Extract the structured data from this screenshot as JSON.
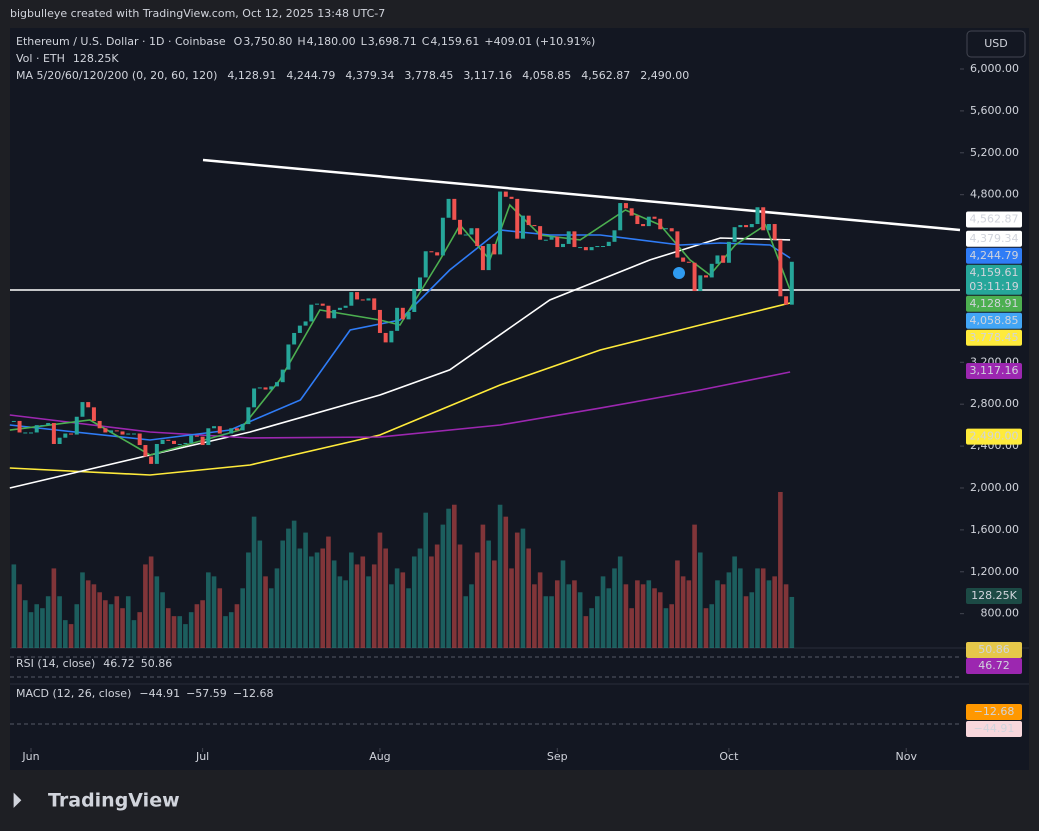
{
  "chart_data": {
    "type": "candlestick",
    "credit": "bigbulleye created with TradingView.com, Oct 12, 2025 13:48 UTC-7",
    "symbol": "Ethereum / U.S. Dollar · 1D · Coinbase",
    "ohlc": [
      {
        "key": "O",
        "label": "3,750.80"
      },
      {
        "key": "H",
        "label": "4,180.00"
      },
      {
        "key": "L",
        "label": "3,698.71"
      },
      {
        "key": "C",
        "label": "4,159.61"
      }
    ],
    "change": "+409.01 (+10.91%)",
    "close": {
      "value": 4159.61,
      "label": "4,159.61"
    },
    "countdown": "03:11:19",
    "currency": "USD",
    "vol_legend": {
      "label": "Vol · ETH",
      "value": 128250,
      "value_label": "128.25K"
    },
    "ma_legend": "MA 5/20/60/120/200 (0, 20, 60, 120)",
    "ma_values": [
      {
        "value": 4128.91,
        "label": "4,128.91",
        "color": "#4caf50",
        "text_color": "#000000"
      },
      {
        "value": 4244.79,
        "label": "4,244.79",
        "color": "#2f7cf6",
        "text_color": "#ffffff"
      },
      {
        "value": 4379.34,
        "label": "4,379.34",
        "color": "#ffffff",
        "text_color": "#000000"
      },
      {
        "value": 3778.45,
        "label": "3,778.45",
        "color": "#ffeb3b",
        "text_color": "#000000"
      },
      {
        "value": 3117.16,
        "label": "3,117.16",
        "color": "#9c27b0",
        "text_color": "#ffffff"
      },
      {
        "value": 4058.85,
        "label": "4,058.85",
        "color": "#42a5f5",
        "text_color": "#ffffff"
      },
      {
        "value": 4562.87,
        "label": "4,562.87",
        "color": "#ffffff",
        "text_color": "#000000"
      },
      {
        "value": 2490.0,
        "label": "2,490.00",
        "color": "#ffeb3b",
        "text_color": "#000000"
      }
    ],
    "ma_lines": [
      {
        "color": "#ffeb3b",
        "x": [
          -0.7,
          23.8,
          41.3,
          64,
          85,
          102.5,
          120,
          135.7
        ],
        "values": [
          2191,
          2124,
          2219,
          2506,
          2983,
          3317,
          3556,
          3766
        ]
      },
      {
        "color": "#ffffff",
        "x": [
          -0.7,
          23.8,
          41.3,
          64,
          76.2,
          93.7,
          111.2,
          123.5,
          135.7
        ],
        "values": [
          2000,
          2315,
          2534,
          2888,
          3127,
          3795,
          4177,
          4387,
          4368
        ]
      },
      {
        "color": "#9c27b0",
        "x": [
          -0.7,
          23.8,
          41.3,
          64,
          85,
          102.5,
          120,
          135.7
        ],
        "values": [
          2697,
          2534,
          2477,
          2487,
          2601,
          2763,
          2935,
          3107
        ]
      },
      {
        "color": "#2f7cf6",
        "x": [
          -0.7,
          23.8,
          37.8,
          50.1,
          58.8,
          67.5,
          76.2,
          85,
          93.7,
          102.5,
          116.5,
          123.5,
          132.2,
          135.7
        ],
        "values": [
          2601,
          2458,
          2554,
          2840,
          3508,
          3604,
          4081,
          4463,
          4415,
          4415,
          4320,
          4339,
          4320,
          4196
        ]
      },
      {
        "color": "#4caf50",
        "x": [
          -0.7,
          13.3,
          23.8,
          39.5,
          46.5,
          53.5,
          64,
          67.5,
          74.5,
          78,
          83.2,
          86.7,
          92,
          99,
          106.9,
          113,
          118.2,
          121.7,
          126.1,
          131.4,
          135.7
        ],
        "values": [
          2553,
          2649,
          2315,
          2553,
          3031,
          3699,
          3604,
          3556,
          4177,
          4511,
          4177,
          4702,
          4415,
          4368,
          4654,
          4511,
          4177,
          4033,
          4320,
          4511,
          3890
        ]
      }
    ],
    "candles": {
      "close": [
        2640,
        2530,
        2530,
        2530,
        2600,
        2600,
        2620,
        2420,
        2480,
        2520,
        2510,
        2680,
        2820,
        2770,
        2640,
        2570,
        2530,
        2550,
        2540,
        2510,
        2520,
        2520,
        2410,
        2300,
        2230,
        2420,
        2460,
        2450,
        2420,
        2420,
        2430,
        2500,
        2490,
        2410,
        2570,
        2590,
        2520,
        2520,
        2570,
        2550,
        2610,
        2770,
        2950,
        2960,
        2940,
        2970,
        3010,
        3130,
        3370,
        3480,
        3550,
        3590,
        3750,
        3760,
        3740,
        3620,
        3700,
        3720,
        3740,
        3870,
        3800,
        3790,
        3810,
        3700,
        3480,
        3390,
        3500,
        3720,
        3610,
        3680,
        3900,
        4010,
        4260,
        4250,
        4220,
        4580,
        4760,
        4560,
        4420,
        4420,
        4480,
        4310,
        4080,
        4330,
        4230,
        4830,
        4780,
        4760,
        4380,
        4600,
        4510,
        4500,
        4370,
        4370,
        4400,
        4300,
        4330,
        4450,
        4300,
        4300,
        4270,
        4300,
        4310,
        4310,
        4350,
        4460,
        4720,
        4670,
        4600,
        4520,
        4500,
        4590,
        4570,
        4470,
        4480,
        4450,
        4200,
        4160,
        4150,
        3880,
        4030,
        4010,
        4140,
        4220,
        4150,
        4350,
        4490,
        4510,
        4490,
        4520,
        4680,
        4460,
        4520,
        4370,
        3830,
        3750,
        4159.61
      ],
      "up_color": "#26a69a",
      "down_color": "#ef5350"
    },
    "volume": {
      "values": [
        210000,
        160000,
        120000,
        90000,
        110000,
        100000,
        130000,
        200000,
        130000,
        70000,
        60000,
        110000,
        190000,
        170000,
        160000,
        140000,
        120000,
        110000,
        130000,
        100000,
        130000,
        70000,
        90000,
        210000,
        230000,
        180000,
        140000,
        100000,
        80000,
        80000,
        60000,
        90000,
        110000,
        120000,
        190000,
        180000,
        150000,
        80000,
        90000,
        110000,
        150000,
        240000,
        330000,
        270000,
        180000,
        150000,
        200000,
        270000,
        300000,
        320000,
        250000,
        290000,
        230000,
        240000,
        250000,
        280000,
        220000,
        180000,
        170000,
        240000,
        210000,
        230000,
        180000,
        210000,
        290000,
        250000,
        160000,
        200000,
        190000,
        150000,
        230000,
        250000,
        340000,
        230000,
        260000,
        310000,
        350000,
        360000,
        260000,
        130000,
        160000,
        240000,
        310000,
        270000,
        220000,
        360000,
        330000,
        200000,
        290000,
        300000,
        250000,
        160000,
        190000,
        130000,
        130000,
        170000,
        220000,
        160000,
        170000,
        140000,
        80000,
        100000,
        130000,
        180000,
        150000,
        200000,
        230000,
        160000,
        100000,
        170000,
        160000,
        170000,
        150000,
        140000,
        100000,
        110000,
        220000,
        180000,
        170000,
        310000,
        240000,
        100000,
        110000,
        170000,
        160000,
        190000,
        230000,
        200000,
        130000,
        140000,
        200000,
        200000,
        170000,
        180000,
        392000,
        160000,
        128250
      ],
      "ylim": [
        0,
        1000000
      ],
      "up_color": "rgba(38,166,154,0.5)",
      "down_color": "rgba(239,83,80,0.5)"
    },
    "xlim": [
      -0.67,
      165.4
    ],
    "xticks": [
      {
        "value": 3,
        "label": "Jun"
      },
      {
        "value": 33,
        "label": "Jul"
      },
      {
        "value": 64,
        "label": "Aug"
      },
      {
        "value": 95,
        "label": "Sep"
      },
      {
        "value": 125,
        "label": "Oct"
      },
      {
        "value": 156,
        "label": "Nov"
      }
    ],
    "ylim": [
      -692.4,
      6372.3
    ],
    "yticks": [
      {
        "value": 6000,
        "label": "6,000.00"
      },
      {
        "value": 5600,
        "label": "5,600.00"
      },
      {
        "value": 5200,
        "label": "5,200.00"
      },
      {
        "value": 4800,
        "label": "4,800.00"
      },
      {
        "value": 3200,
        "label": "3,200.00"
      },
      {
        "value": 2800,
        "label": "2,800.00"
      },
      {
        "value": 2400,
        "label": "2,400.00"
      },
      {
        "value": 2000,
        "label": "2,000.00"
      },
      {
        "value": 1600,
        "label": "1,600.00"
      },
      {
        "value": 1200,
        "label": "1,200.00"
      },
      {
        "value": 800,
        "label": "800.00"
      }
    ],
    "rsi": {
      "label": "RSI (14, close)",
      "values": [
        {
          "value": 46.72,
          "color": "#9c27b0"
        },
        {
          "value": 50.86,
          "color": "#e6c84a"
        }
      ]
    },
    "macd": {
      "label": "MACD (12, 26, close)",
      "values": [
        {
          "value": -44.91,
          "label": "−44.91",
          "color": "#d1d4dc"
        },
        {
          "value": -57.59,
          "label": "−57.59",
          "color": "#2f7cf6"
        },
        {
          "value": -12.68,
          "label": "−12.68",
          "color": "#ff9800"
        }
      ]
    },
    "brand": "TradingView"
  }
}
